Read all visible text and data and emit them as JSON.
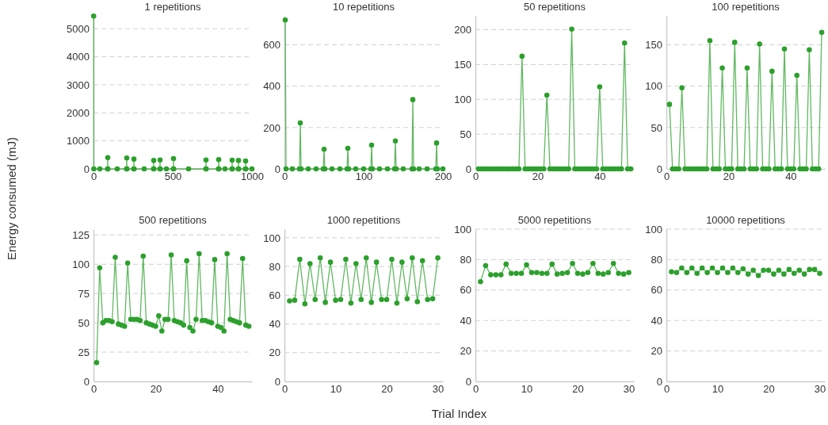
{
  "chart_data": [
    {
      "type": "line",
      "title": "1 repetitions",
      "ylabel": "Energy consumed (mJ)",
      "marker": "circle",
      "grid": "y",
      "xlim": [
        0,
        1000
      ],
      "xticks": [
        0,
        500,
        1000
      ],
      "ylim": [
        0,
        5460
      ],
      "yticks": [
        0,
        1000,
        2000,
        3000,
        4000,
        5000
      ],
      "series": [
        {
          "color": "#2ca02c",
          "x": [
            1,
            2,
            40,
            89,
            90,
            91,
            150,
            209,
            210,
            211,
            254,
            255,
            256,
            320,
            379,
            380,
            381,
            419,
            420,
            421,
            460,
            504,
            505,
            506,
            600,
            709,
            710,
            711,
            789,
            790,
            791,
            830,
            874,
            875,
            876,
            914,
            915,
            916,
            959,
            960,
            961,
            1000
          ],
          "values": [
            5450,
            0,
            0,
            0,
            400,
            0,
            0,
            0,
            390,
            0,
            0,
            350,
            0,
            0,
            0,
            300,
            0,
            0,
            320,
            0,
            0,
            0,
            370,
            0,
            0,
            0,
            320,
            0,
            0,
            330,
            0,
            0,
            0,
            310,
            0,
            0,
            300,
            0,
            0,
            280,
            0,
            0
          ]
        }
      ]
    },
    {
      "type": "line",
      "title": "10 repetitions",
      "marker": "circle",
      "grid": "y",
      "xlim": [
        0,
        200
      ],
      "xticks": [
        0,
        100,
        200
      ],
      "ylim": [
        0,
        740
      ],
      "yticks": [
        0,
        200,
        400,
        600
      ],
      "series": [
        {
          "color": "#2ca02c",
          "x": [
            1,
            2,
            10,
            19,
            20,
            21,
            30,
            40,
            49,
            50,
            51,
            60,
            70,
            79,
            80,
            81,
            90,
            100,
            109,
            110,
            111,
            120,
            130,
            139,
            140,
            141,
            150,
            161,
            162,
            163,
            170,
            180,
            191,
            192,
            193,
            200
          ],
          "values": [
            720,
            0,
            0,
            0,
            222,
            0,
            0,
            0,
            0,
            95,
            0,
            0,
            0,
            0,
            100,
            0,
            0,
            0,
            0,
            115,
            0,
            0,
            0,
            0,
            135,
            0,
            0,
            0,
            335,
            0,
            0,
            0,
            0,
            125,
            0,
            0
          ]
        }
      ]
    },
    {
      "type": "line",
      "title": "50 repetitions",
      "marker": "circle",
      "grid": "y",
      "xlim": [
        0,
        51
      ],
      "xticks": [
        0,
        20,
        40
      ],
      "ylim": [
        0,
        220
      ],
      "yticks": [
        0,
        50,
        100,
        150,
        200
      ],
      "series": [
        {
          "color": "#2ca02c",
          "x": [
            1,
            2,
            3,
            4,
            5,
            6,
            7,
            8,
            9,
            10,
            11,
            12,
            13,
            14,
            15,
            16,
            17,
            18,
            19,
            20,
            21,
            22,
            23,
            24,
            25,
            26,
            27,
            28,
            29,
            30,
            31,
            32,
            33,
            34,
            35,
            36,
            37,
            38,
            39,
            40,
            41,
            42,
            43,
            44,
            45,
            46,
            47,
            48,
            49,
            50
          ],
          "values": [
            0,
            0,
            0,
            0,
            0,
            0,
            0,
            0,
            0,
            0,
            0,
            0,
            0,
            0,
            162,
            0,
            0,
            0,
            0,
            0,
            0,
            0,
            106,
            0,
            0,
            0,
            0,
            0,
            0,
            0,
            201,
            0,
            0,
            0,
            0,
            0,
            0,
            0,
            0,
            118,
            0,
            0,
            0,
            0,
            0,
            0,
            0,
            181,
            0,
            0
          ]
        }
      ]
    },
    {
      "type": "line",
      "title": "100 repetitions",
      "marker": "circle",
      "grid": "y",
      "xlim": [
        0,
        51
      ],
      "xticks": [
        0,
        20,
        40
      ],
      "ylim": [
        0,
        185
      ],
      "yticks": [
        0,
        50,
        100,
        150
      ],
      "series": [
        {
          "color": "#2ca02c",
          "x": [
            1,
            2,
            3,
            4,
            5,
            6,
            7,
            8,
            9,
            10,
            11,
            12,
            13,
            14,
            15,
            16,
            17,
            18,
            19,
            20,
            21,
            22,
            23,
            24,
            25,
            26,
            27,
            28,
            29,
            30,
            31,
            32,
            33,
            34,
            35,
            36,
            37,
            38,
            39,
            40,
            41,
            42,
            43,
            44,
            45,
            46,
            47,
            48,
            49,
            50
          ],
          "values": [
            78,
            0,
            0,
            0,
            98,
            0,
            0,
            0,
            0,
            0,
            0,
            0,
            0,
            155,
            0,
            0,
            0,
            122,
            0,
            0,
            0,
            153,
            0,
            0,
            0,
            122,
            0,
            0,
            0,
            151,
            0,
            0,
            0,
            118,
            0,
            0,
            0,
            145,
            0,
            0,
            0,
            113,
            0,
            0,
            0,
            144,
            0,
            0,
            0,
            165
          ]
        }
      ]
    },
    {
      "type": "line",
      "title": "500 repetitions",
      "marker": "circle",
      "grid": "y",
      "xlim": [
        0,
        51
      ],
      "xticks": [
        0,
        20,
        40
      ],
      "ylim": [
        0,
        130
      ],
      "yticks": [
        0,
        25,
        50,
        75,
        100,
        125
      ],
      "series": [
        {
          "color": "#2ca02c",
          "x": [
            1,
            2,
            3,
            4,
            5,
            6,
            7,
            8,
            9,
            10,
            11,
            12,
            13,
            14,
            15,
            16,
            17,
            18,
            19,
            20,
            21,
            22,
            23,
            24,
            25,
            26,
            27,
            28,
            29,
            30,
            31,
            32,
            33,
            34,
            35,
            36,
            37,
            38,
            39,
            40,
            41,
            42,
            43,
            44,
            45,
            46,
            47,
            48,
            49,
            50
          ],
          "values": [
            16,
            97,
            50,
            52,
            52,
            51,
            106,
            49,
            48,
            47,
            101,
            53,
            53,
            53,
            52,
            107,
            50,
            49,
            48,
            47,
            56,
            43,
            53,
            53,
            108,
            52,
            51,
            50,
            48,
            103,
            46,
            43,
            53,
            109,
            52,
            52,
            51,
            50,
            104,
            47,
            46,
            43,
            109,
            53,
            52,
            51,
            50,
            105,
            48,
            47
          ]
        }
      ]
    },
    {
      "type": "line",
      "title": "1000 repetitions",
      "xlabel": "Trial Index",
      "marker": "circle",
      "grid": "y",
      "xlim": [
        0,
        31
      ],
      "xticks": [
        0,
        10,
        20,
        30
      ],
      "ylim": [
        0,
        106
      ],
      "yticks": [
        0,
        20,
        40,
        60,
        80,
        100
      ],
      "series": [
        {
          "color": "#2ca02c",
          "x": [
            1,
            2,
            3,
            4,
            5,
            6,
            7,
            8,
            9,
            10,
            11,
            12,
            13,
            14,
            15,
            16,
            17,
            18,
            19,
            20,
            21,
            22,
            23,
            24,
            25,
            26,
            27,
            28,
            29,
            30
          ],
          "values": [
            56,
            56.5,
            85,
            54,
            82,
            57,
            86,
            55,
            83,
            56.5,
            57,
            85,
            54.5,
            82,
            57,
            86,
            55,
            83,
            57,
            57,
            85,
            54.5,
            83,
            57.5,
            86,
            55.5,
            84,
            57,
            57.5,
            86
          ]
        }
      ]
    },
    {
      "type": "line",
      "title": "5000 repetitions",
      "marker": "circle",
      "grid": "y",
      "xlim": [
        0,
        31
      ],
      "xticks": [
        0,
        10,
        20,
        30
      ],
      "ylim": [
        0,
        100
      ],
      "yticks": [
        0,
        20,
        40,
        60,
        80,
        100
      ],
      "series": [
        {
          "color": "#2ca02c",
          "x": [
            1,
            2,
            3,
            4,
            5,
            6,
            7,
            8,
            9,
            10,
            11,
            12,
            13,
            14,
            15,
            16,
            17,
            18,
            19,
            20,
            21,
            22,
            23,
            24,
            25,
            26,
            27,
            28,
            29,
            30
          ],
          "values": [
            65.5,
            76,
            70,
            70,
            70,
            77,
            71,
            71,
            71,
            76.5,
            71.5,
            71.5,
            71,
            71,
            77,
            70.5,
            71,
            71.5,
            77.5,
            71,
            70.5,
            71.5,
            77.5,
            71,
            70.5,
            71.5,
            77.5,
            71,
            70.5,
            71.5
          ]
        }
      ]
    },
    {
      "type": "line",
      "title": "10000 repetitions",
      "marker": "circle",
      "grid": "y",
      "xlim": [
        0,
        31
      ],
      "xticks": [
        0,
        10,
        20,
        30
      ],
      "ylim": [
        0,
        100
      ],
      "yticks": [
        0,
        20,
        40,
        60,
        80,
        100
      ],
      "series": [
        {
          "color": "#2ca02c",
          "x": [
            1,
            2,
            3,
            4,
            5,
            6,
            7,
            8,
            9,
            10,
            11,
            12,
            13,
            14,
            15,
            16,
            17,
            18,
            19,
            20,
            21,
            22,
            23,
            24,
            25,
            26,
            27,
            28,
            29,
            30
          ],
          "values": [
            72,
            71.5,
            74.5,
            71.5,
            74.5,
            71,
            74.5,
            71.5,
            74.5,
            71.5,
            74.5,
            71.5,
            74.5,
            71.5,
            74,
            70.5,
            73,
            69.5,
            73,
            73,
            70.5,
            73,
            70.5,
            73.5,
            71,
            73,
            70.5,
            73.5,
            73.5,
            71
          ]
        }
      ]
    }
  ]
}
